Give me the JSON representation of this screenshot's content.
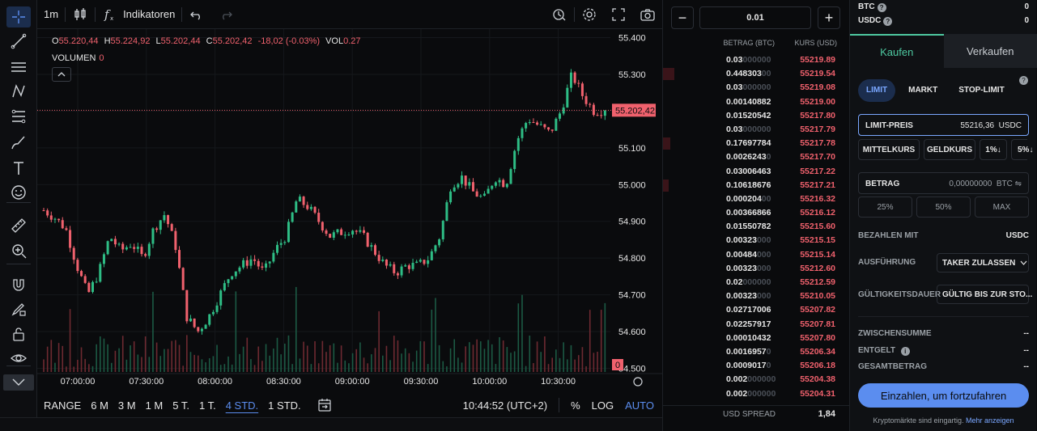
{
  "colors": {
    "up": "#2ebd85",
    "down": "#f0616d",
    "accent": "#5b8def",
    "grid": "#15181c"
  },
  "toolbar_left": {
    "icons": [
      "crosshair-icon",
      "trend-line-icon",
      "horizontal-lines-icon",
      "pattern-icon",
      "fib-icon",
      "brush-icon",
      "text-icon",
      "emoji-icon",
      "ruler-icon",
      "zoom-in-icon",
      "magnet-icon",
      "lock-pencil-icon",
      "lock-icon",
      "eye-icon",
      "collapse-icon"
    ]
  },
  "topbar": {
    "interval": "1m",
    "indicators_label": "Indikatoren",
    "icons": [
      "candle-type-icon",
      "function-icon",
      "undo-icon",
      "redo-icon",
      "alert-icon",
      "settings-icon",
      "fullscreen-icon",
      "camera-icon"
    ]
  },
  "ohlc": {
    "o_label": "O",
    "o": "55.220,44",
    "h_label": "H",
    "h": "55.224,92",
    "l_label": "L",
    "l": "55.202,44",
    "c_label": "C",
    "c": "55.202,42",
    "change": "-18,02 (-0.03%)",
    "vol_label": "VOL",
    "vol": "0.27",
    "volume_label": "VOLUMEN",
    "volume_value": "0"
  },
  "chart_data": {
    "type": "candlestick",
    "y_ticks": [
      "55.400",
      "55.300",
      "55.200",
      "55.100",
      "55.000",
      "54.900",
      "54.800",
      "54.700",
      "54.600",
      "54.500"
    ],
    "y_range": [
      54490,
      55410
    ],
    "x_ticks": [
      "07:00:00",
      "07:30:00",
      "08:00:00",
      "08:30:00",
      "09:00:00",
      "09:30:00",
      "10:00:00",
      "10:30:00"
    ],
    "current_price_label": "55.202,42",
    "current_price": 55202.42,
    "volume_marker_label": "0",
    "series": [
      {
        "name": "close",
        "values": [
          54930,
          54910,
          54880,
          54780,
          54700,
          54760,
          54860,
          54820,
          54840,
          54800,
          54880,
          54920,
          54830,
          54640,
          54600,
          54640,
          54700,
          54760,
          54780,
          54800,
          54760,
          54820,
          54860,
          54960,
          54940,
          54900,
          54860,
          54870,
          54880,
          54860,
          54820,
          54780,
          54760,
          54780,
          54780,
          54800,
          54860,
          55000,
          55020,
          54980,
          54960,
          55020,
          55000,
          55120,
          55180,
          55160,
          55140,
          55200,
          55300,
          55240,
          55200,
          55202
        ]
      }
    ]
  },
  "rangebar": {
    "items": [
      "RANGE",
      "6 M",
      "3 M",
      "1 M",
      "5 T.",
      "1 T.",
      "4 STD.",
      "1 STD."
    ],
    "selected": "4 STD.",
    "time": "10:44:52 (UTC+2)",
    "pct": "%",
    "log": "LOG",
    "auto": "AUTO"
  },
  "orderbook": {
    "minus": "−",
    "plus": "+",
    "increment": "0.01",
    "col_amount": "BETRAG (BTC)",
    "col_price": "KURS (USD)",
    "rows": [
      {
        "amt": "0.03",
        "pad": "000000",
        "price": "55219.89"
      },
      {
        "amt": "0.448303",
        "pad": "00",
        "price": "55219.54"
      },
      {
        "amt": "0.03",
        "pad": "000000",
        "price": "55219.08"
      },
      {
        "amt": "0.00140882",
        "pad": "",
        "price": "55219.00"
      },
      {
        "amt": "0.01520542",
        "pad": "",
        "price": "55217.80"
      },
      {
        "amt": "0.03",
        "pad": "000000",
        "price": "55217.79"
      },
      {
        "amt": "0.17697784",
        "pad": "",
        "price": "55217.78"
      },
      {
        "amt": "0.0026243",
        "pad": "0",
        "price": "55217.70"
      },
      {
        "amt": "0.03006463",
        "pad": "",
        "price": "55217.22"
      },
      {
        "amt": "0.10618676",
        "pad": "",
        "price": "55217.21"
      },
      {
        "amt": "0.000204",
        "pad": "00",
        "price": "55216.32"
      },
      {
        "amt": "0.00366866",
        "pad": "",
        "price": "55216.12"
      },
      {
        "amt": "0.01550782",
        "pad": "",
        "price": "55215.60"
      },
      {
        "amt": "0.00323",
        "pad": "000",
        "price": "55215.15"
      },
      {
        "amt": "0.00484",
        "pad": "000",
        "price": "55215.14"
      },
      {
        "amt": "0.00323",
        "pad": "000",
        "price": "55212.60"
      },
      {
        "amt": "0.02",
        "pad": "000000",
        "price": "55212.59"
      },
      {
        "amt": "0.00323",
        "pad": "000",
        "price": "55210.05"
      },
      {
        "amt": "0.02717006",
        "pad": "",
        "price": "55207.82"
      },
      {
        "amt": "0.02257917",
        "pad": "",
        "price": "55207.81"
      },
      {
        "amt": "0.00010432",
        "pad": "",
        "price": "55207.80"
      },
      {
        "amt": "0.0016957",
        "pad": "0",
        "price": "55206.34"
      },
      {
        "amt": "0.0009017",
        "pad": "0",
        "price": "55206.18"
      },
      {
        "amt": "0.002",
        "pad": "000000",
        "price": "55204.38"
      },
      {
        "amt": "0.002",
        "pad": "000000",
        "price": "55204.31"
      }
    ],
    "spread_label": "USD SPREAD",
    "spread_value": "1,84"
  },
  "trade": {
    "balances": [
      {
        "asset": "BTC",
        "value": "0"
      },
      {
        "asset": "USDC",
        "value": "0"
      }
    ],
    "tab_buy": "Kaufen",
    "tab_sell": "Verkaufen",
    "order_types": [
      "LIMIT",
      "MARKT",
      "STOP-LIMIT"
    ],
    "limit_label": "LIMIT-PREIS",
    "limit_value": "55216,36",
    "limit_unit": "USDC",
    "chips": [
      "MITTELKURS",
      "GELDKURS",
      "1%↓",
      "5%↓"
    ],
    "amount_label": "BETRAG",
    "amount_value": "0,00000000",
    "amount_unit": "BTC ⇋",
    "pcts": [
      "25%",
      "50%",
      "MAX"
    ],
    "pay_label": "BEZAHLEN MIT",
    "pay_value": "USDC",
    "exec_label": "AUSFÜHRUNG",
    "exec_value": "TAKER ZULASSEN",
    "valid_label": "GÜLTIGKEITSDAUER",
    "valid_value": "GÜLTIG BIS ZUR STO...",
    "subtotal_label": "ZWISCHENSUMME",
    "subtotal_value": "--",
    "fee_label": "ENTGELT",
    "fee_value": "--",
    "total_label": "GESAMTBETRAG",
    "total_value": "--",
    "cta": "Einzahlen, um fortzufahren",
    "footer": "Kryptomärkte sind eingartig.",
    "footer_link": "Mehr anzeigen"
  }
}
